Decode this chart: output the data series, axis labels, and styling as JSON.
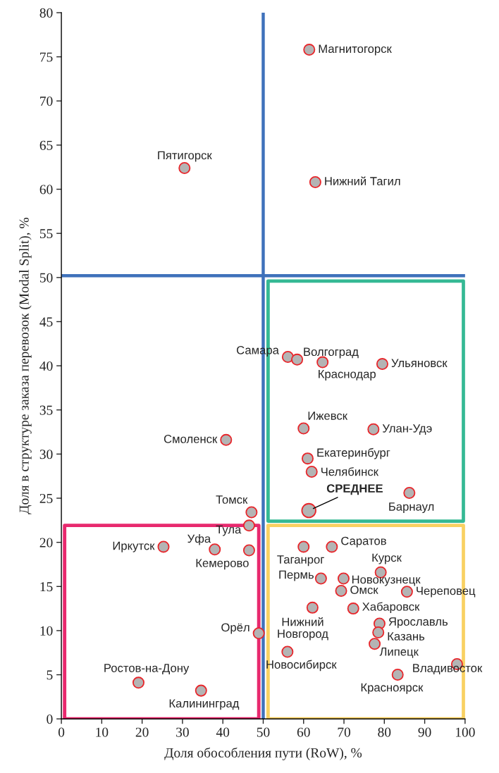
{
  "chart_data": {
    "type": "scatter",
    "xlabel": "Доля обособления пути (RoW), %",
    "ylabel": "Доля в структуре заказа перевозок (Modal Split), %",
    "xlim": [
      0,
      100
    ],
    "xticks": [
      0,
      10,
      20,
      30,
      40,
      50,
      60,
      70,
      80,
      90,
      100
    ],
    "ylim": [
      0,
      80
    ],
    "yticks": [
      0,
      5,
      10,
      15,
      20,
      25,
      30,
      35,
      40,
      45,
      50,
      55,
      60,
      65,
      70,
      75,
      80
    ],
    "marker": "circle",
    "series": [
      {
        "color": "#b4b4b4",
        "x": [
          61.4,
          30.5,
          62.9,
          56.1,
          58.4,
          64.7,
          79.5,
          60.0,
          77.3,
          40.8,
          61.0,
          62.0,
          86.2,
          47.1,
          46.5,
          25.3,
          38.0,
          46.5,
          48.9,
          19.1,
          34.6,
          60.0,
          67.0,
          79.1,
          64.3,
          69.9,
          69.3,
          85.6,
          62.2,
          72.3,
          78.8,
          78.5,
          77.6,
          56.0,
          98.0,
          83.3
        ],
        "values": [
          75.8,
          62.4,
          60.8,
          41.0,
          40.7,
          40.4,
          40.2,
          32.9,
          32.8,
          31.6,
          29.5,
          28.0,
          25.6,
          23.4,
          21.9,
          19.5,
          19.2,
          19.1,
          9.7,
          4.1,
          3.2,
          19.5,
          19.5,
          16.6,
          15.9,
          15.9,
          14.5,
          14.4,
          12.6,
          12.5,
          10.8,
          9.8,
          8.5,
          7.6,
          6.2,
          5.0
        ]
      },
      {
        "color": "#b4b4b4",
        "x": [
          61.3
        ],
        "values": [
          23.6
        ]
      }
    ],
    "ref_lines": [
      {
        "axis": "x",
        "value": 50,
        "color": "#3f71bb"
      },
      {
        "axis": "y",
        "value": 50.2,
        "color": "#3f71bb"
      }
    ],
    "annotations": [
      {
        "text": "Магнитогорск",
        "x": 61.4,
        "y": 75.8
      },
      {
        "text": "Пятигорск",
        "x": 30.5,
        "y": 62.4
      },
      {
        "text": "Нижний Тагил",
        "x": 62.9,
        "y": 60.8
      },
      {
        "text": "Самара",
        "x": 56.1,
        "y": 41.0
      },
      {
        "text": "Волгоград",
        "x": 58.4,
        "y": 40.7
      },
      {
        "text": "Краснодар",
        "x": 64.7,
        "y": 40.4
      },
      {
        "text": "Ульяновск",
        "x": 79.5,
        "y": 40.2
      },
      {
        "text": "Ижевск",
        "x": 60.0,
        "y": 32.9
      },
      {
        "text": "Улан-Удэ",
        "x": 77.3,
        "y": 32.8
      },
      {
        "text": "Смоленск",
        "x": 40.8,
        "y": 31.6
      },
      {
        "text": "Екатеринбург",
        "x": 61.0,
        "y": 29.5
      },
      {
        "text": "Челябинск",
        "x": 62.0,
        "y": 28.0
      },
      {
        "text": "Барнаул",
        "x": 86.2,
        "y": 25.6
      },
      {
        "text": "Томск",
        "x": 47.1,
        "y": 23.4
      },
      {
        "text": "Тула",
        "x": 46.5,
        "y": 21.9
      },
      {
        "text": "Иркутск",
        "x": 25.3,
        "y": 19.5
      },
      {
        "text": "Уфа",
        "x": 38.0,
        "y": 19.2
      },
      {
        "text": "Кемерово",
        "x": 46.5,
        "y": 19.1
      },
      {
        "text": "Орёл",
        "x": 48.9,
        "y": 9.7
      },
      {
        "text": "Ростов-на-Дону",
        "x": 19.1,
        "y": 4.1
      },
      {
        "text": "Калининград",
        "x": 34.6,
        "y": 3.2
      },
      {
        "text": "Таганрог",
        "x": 60.0,
        "y": 19.5
      },
      {
        "text": "Саратов",
        "x": 67.0,
        "y": 19.5
      },
      {
        "text": "Курск",
        "x": 79.1,
        "y": 16.6
      },
      {
        "text": "Пермь",
        "x": 64.3,
        "y": 15.9
      },
      {
        "text": "Новокузнецк",
        "x": 69.9,
        "y": 15.9
      },
      {
        "text": "Омск",
        "x": 69.3,
        "y": 14.5
      },
      {
        "text": "Череповец",
        "x": 85.6,
        "y": 14.4
      },
      {
        "text": "Нижний\nНовгород",
        "x": 62.2,
        "y": 12.6
      },
      {
        "text": "Хабаровск",
        "x": 72.3,
        "y": 12.5
      },
      {
        "text": "Ярославль",
        "x": 78.8,
        "y": 10.8
      },
      {
        "text": "Казань",
        "x": 78.5,
        "y": 9.8
      },
      {
        "text": "Липецк",
        "x": 77.6,
        "y": 8.5
      },
      {
        "text": "Новосибирск",
        "x": 56.0,
        "y": 7.6
      },
      {
        "text": "Владивосток",
        "x": 98.0,
        "y": 6.2
      },
      {
        "text": "Красноярск",
        "x": 83.3,
        "y": 5.0
      },
      {
        "text": "СРЕДНЕЕ",
        "x": 61.3,
        "y": 23.6
      }
    ]
  }
}
